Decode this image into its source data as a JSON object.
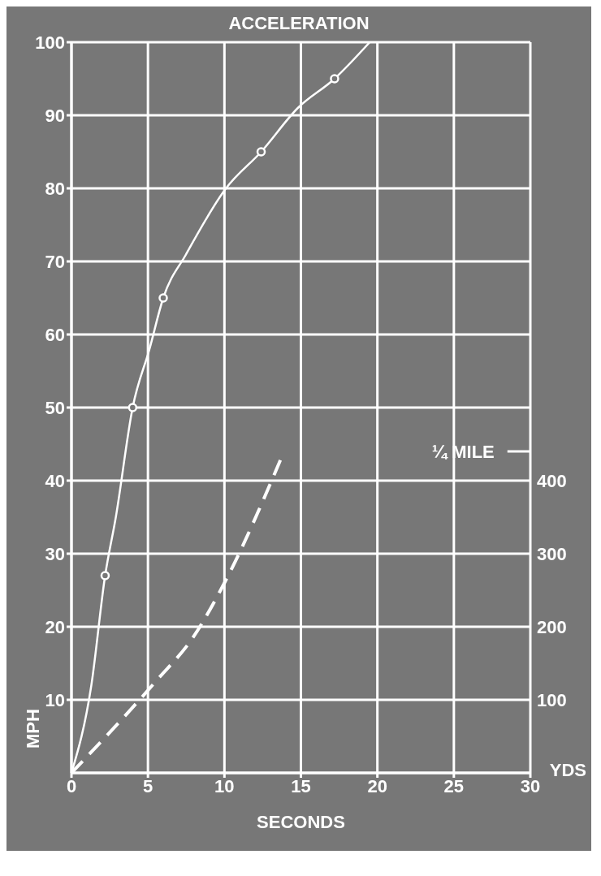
{
  "chart_data": {
    "type": "line",
    "title": "ACCELERATION",
    "xlabel": "SECONDS",
    "ylabel": "MPH",
    "y2label": "YDS",
    "xlim": [
      0,
      30
    ],
    "xticks": [
      0,
      5,
      10,
      15,
      20,
      25,
      30
    ],
    "ylim": [
      0,
      100
    ],
    "yticks": [
      10,
      20,
      30,
      40,
      50,
      60,
      70,
      80,
      90,
      100
    ],
    "y2lim": [
      0,
      1000
    ],
    "y2ticks": [
      100,
      200,
      300,
      400
    ],
    "grid": true,
    "ref_lines": [
      {
        "axis": "y2",
        "value": 440,
        "label": "¼ MILE",
        "color": "#ffffff"
      }
    ],
    "series": [
      {
        "color": "#ffffff",
        "line_style": "solid",
        "x": [
          0,
          1.3,
          2.2,
          2.9,
          4.0,
          5.1,
          6.0,
          7.5,
          10.1,
          12.4,
          14.8,
          17.2,
          19.5
        ],
        "values": [
          0,
          12,
          27,
          35,
          50,
          58,
          65,
          71,
          80,
          85,
          91,
          95,
          100
        ]
      },
      {
        "type": "scatter",
        "color": "#ffffff",
        "marker": "circle",
        "x": [
          2.2,
          4.0,
          6.0,
          12.4,
          17.2
        ],
        "values": [
          27,
          50,
          65,
          85,
          95
        ]
      },
      {
        "type": "line",
        "color": "#ffffff",
        "line_style": "dashed",
        "axis": "y2",
        "x": [
          0,
          5.5,
          8,
          10,
          13.8
        ],
        "values": [
          0,
          125,
          187,
          260,
          435
        ]
      }
    ]
  }
}
